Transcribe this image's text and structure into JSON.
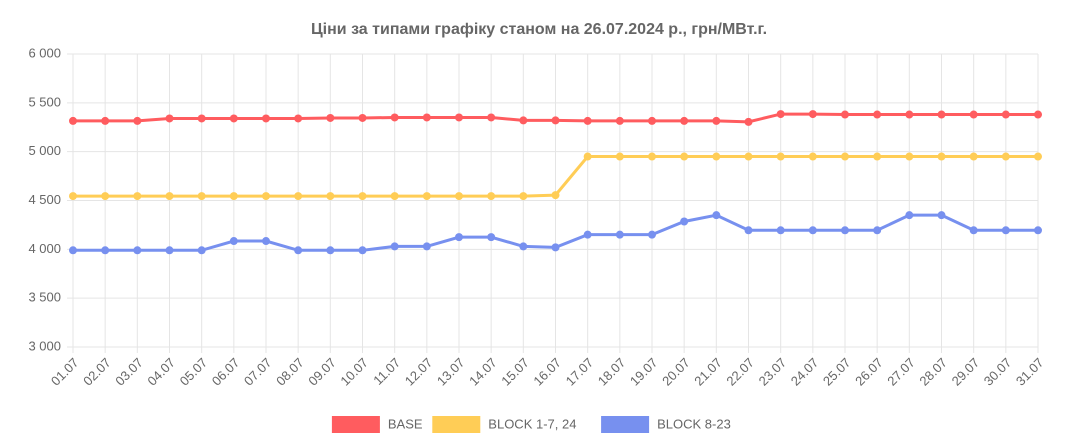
{
  "chart_data": {
    "type": "line",
    "title": "Ціни за типами графіку станом на 26.07.2024 р., грн/МВт.г.",
    "categories": [
      "01.07",
      "02.07",
      "03.07",
      "04.07",
      "05.07",
      "06.07",
      "07.07",
      "08.07",
      "09.07",
      "10.07",
      "11.07",
      "12.07",
      "13.07",
      "14.07",
      "15.07",
      "16.07",
      "17.07",
      "18.07",
      "19.07",
      "20.07",
      "21.07",
      "22.07",
      "23.07",
      "24.07",
      "25.07",
      "26.07",
      "27.07",
      "28.07",
      "29.07",
      "30.07",
      "31.07"
    ],
    "series": [
      {
        "name": "BASE",
        "color": "#ff5c5f",
        "values": [
          5315,
          5315,
          5315,
          5340,
          5340,
          5340,
          5340,
          5340,
          5345,
          5345,
          5350,
          5350,
          5350,
          5350,
          5320,
          5320,
          5315,
          5315,
          5315,
          5315,
          5315,
          5305,
          5385,
          5385,
          5380,
          5380,
          5380,
          5380,
          5380,
          5380,
          5380
        ]
      },
      {
        "name": "BLOCK 1-7, 24",
        "color": "#ffcd56",
        "values": [
          4545,
          4545,
          4545,
          4545,
          4545,
          4545,
          4545,
          4545,
          4545,
          4545,
          4545,
          4545,
          4545,
          4545,
          4545,
          4555,
          4950,
          4950,
          4950,
          4950,
          4950,
          4950,
          4950,
          4950,
          4950,
          4950,
          4950,
          4950,
          4950,
          4950,
          4950
        ]
      },
      {
        "name": "BLOCK 8-23",
        "color": "#7790ef",
        "values": [
          3990,
          3990,
          3990,
          3990,
          3990,
          4085,
          4085,
          3990,
          3990,
          3990,
          4030,
          4030,
          4125,
          4125,
          4030,
          4020,
          4150,
          4150,
          4150,
          4285,
          4350,
          4195,
          4195,
          4195,
          4195,
          4195,
          4350,
          4350,
          4195,
          4195,
          4195
        ]
      }
    ],
    "ylim": [
      3000,
      6000
    ],
    "yticks": [
      {
        "value": 3000,
        "label": "3 000"
      },
      {
        "value": 3500,
        "label": "3 500"
      },
      {
        "value": 4000,
        "label": "4 000"
      },
      {
        "value": 4500,
        "label": "4 500"
      },
      {
        "value": 5000,
        "label": "5 000"
      },
      {
        "value": 5500,
        "label": "5 500"
      },
      {
        "value": 6000,
        "label": "6 000"
      }
    ],
    "grid": true,
    "legend": "bottom"
  }
}
